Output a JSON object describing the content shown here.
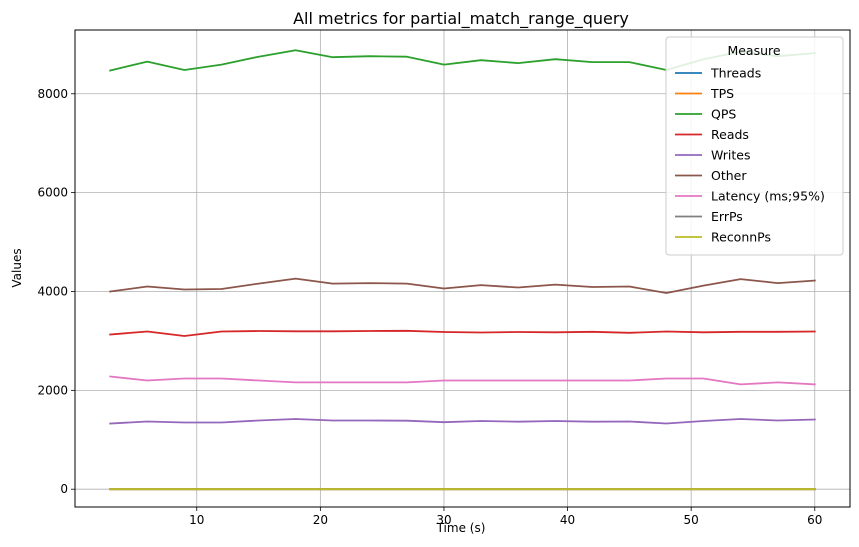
{
  "chart_data": {
    "type": "line",
    "title": "All metrics for partial_match_range_query",
    "xlabel": "Time (s)",
    "ylabel": "Values",
    "xlim": [
      0.15,
      62.85
    ],
    "ylim": [
      -360,
      9290
    ],
    "xticks": [
      10,
      20,
      30,
      40,
      50,
      60
    ],
    "yticks": [
      0,
      2000,
      4000,
      6000,
      8000
    ],
    "grid": true,
    "legend": {
      "title": "Measure",
      "placement": "top-right"
    },
    "x": [
      3,
      6,
      9,
      12,
      15,
      18,
      21,
      24,
      27,
      30,
      33,
      36,
      39,
      42,
      45,
      48,
      51,
      54,
      57,
      60
    ],
    "series": [
      {
        "name": "Threads",
        "color": "#1f77b4",
        "values": [
          1,
          1,
          1,
          1,
          1,
          1,
          1,
          1,
          1,
          1,
          1,
          1,
          1,
          1,
          1,
          1,
          1,
          1,
          1,
          1
        ]
      },
      {
        "name": "TPS",
        "color": "#ff7f0e",
        "values": [
          0,
          0,
          0,
          0,
          0,
          0,
          0,
          0,
          0,
          0,
          0,
          0,
          0,
          0,
          0,
          0,
          0,
          0,
          0,
          0
        ]
      },
      {
        "name": "QPS",
        "color": "#2ca02c",
        "values": [
          8470,
          8650,
          8480,
          8590,
          8750,
          8880,
          8740,
          8760,
          8750,
          8590,
          8680,
          8620,
          8700,
          8640,
          8640,
          8480,
          8700,
          8850,
          8760,
          8820
        ]
      },
      {
        "name": "Reads",
        "color": "#d62728",
        "values": [
          3130,
          3190,
          3100,
          3190,
          3200,
          3195,
          3195,
          3200,
          3205,
          3180,
          3170,
          3180,
          3175,
          3185,
          3165,
          3190,
          3175,
          3185,
          3185,
          3190
        ]
      },
      {
        "name": "Writes",
        "color": "#9467bd",
        "values": [
          1330,
          1370,
          1350,
          1350,
          1390,
          1420,
          1390,
          1390,
          1385,
          1355,
          1380,
          1365,
          1380,
          1365,
          1370,
          1330,
          1380,
          1420,
          1390,
          1410
        ]
      },
      {
        "name": "Other",
        "color": "#8c564b",
        "values": [
          4000,
          4100,
          4040,
          4050,
          4160,
          4260,
          4160,
          4170,
          4160,
          4060,
          4130,
          4080,
          4140,
          4090,
          4100,
          3970,
          4120,
          4250,
          4170,
          4220
        ]
      },
      {
        "name": "Latency (ms;95%)",
        "color": "#e377c2",
        "values": [
          2280,
          2200,
          2240,
          2240,
          2200,
          2160,
          2160,
          2160,
          2160,
          2200,
          2200,
          2200,
          2200,
          2200,
          2200,
          2240,
          2240,
          2120,
          2160,
          2120
        ]
      },
      {
        "name": "ErrPs",
        "color": "#7f7f7f",
        "values": [
          0,
          0,
          0,
          0,
          0,
          0,
          0,
          0,
          0,
          0,
          0,
          0,
          0,
          0,
          0,
          0,
          0,
          0,
          0,
          0
        ]
      },
      {
        "name": "ReconnPs",
        "color": "#bcbd22",
        "values": [
          0,
          0,
          0,
          0,
          0,
          0,
          0,
          0,
          0,
          0,
          0,
          0,
          0,
          0,
          0,
          0,
          0,
          0,
          0,
          0
        ]
      }
    ]
  }
}
